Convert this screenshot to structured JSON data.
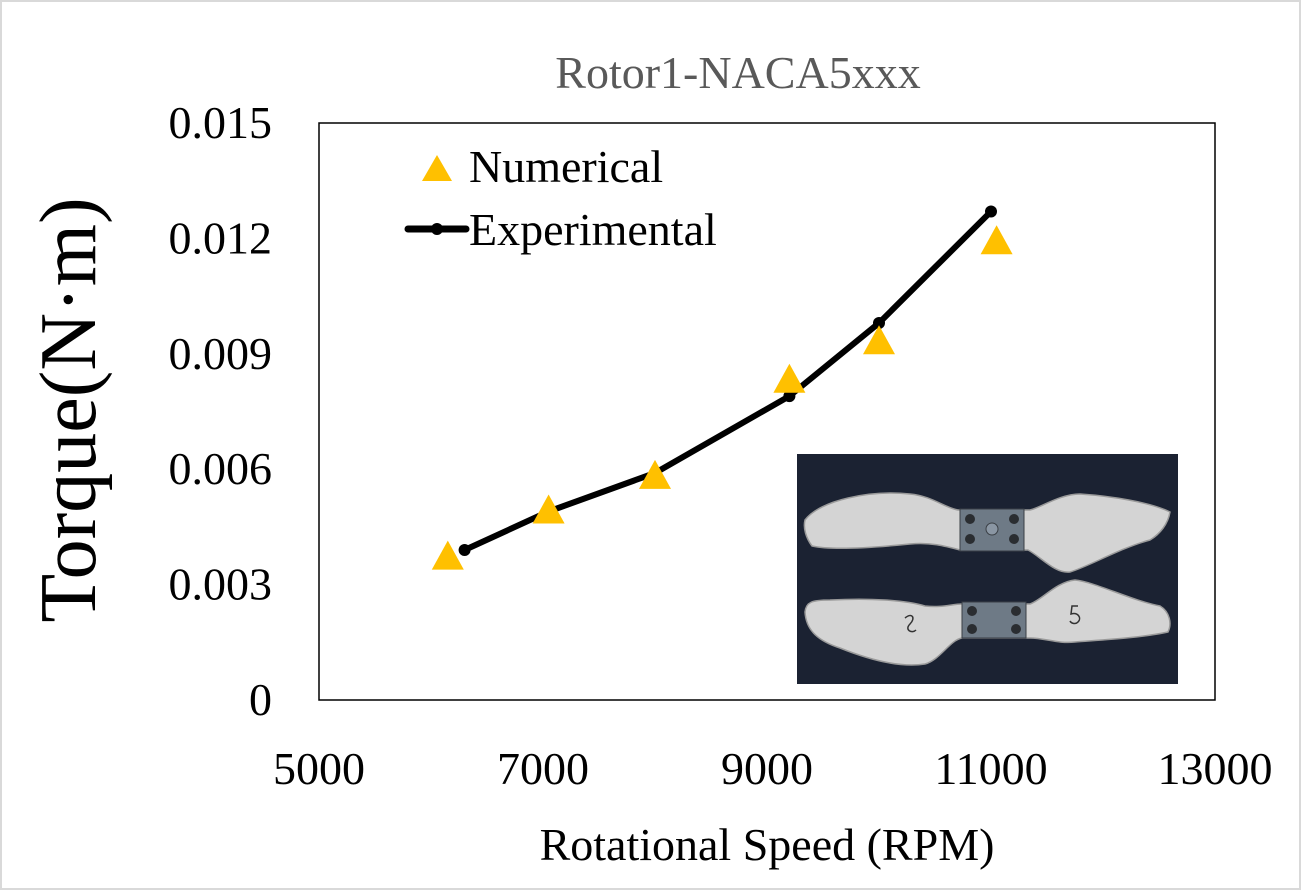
{
  "chart_data": {
    "type": "line",
    "title": "Rotor1-NACA5xxx",
    "xlabel": "Rotational Speed (RPM)",
    "ylabel": "Torque(N·m)",
    "xlim": [
      5000,
      13000
    ],
    "ylim": [
      0,
      0.015
    ],
    "x_ticks": [
      "5000",
      "7000",
      "9000",
      "11000",
      "13000"
    ],
    "y_ticks": [
      "0",
      "0.003",
      "0.006",
      "0.009",
      "0.012",
      "0.015"
    ],
    "x_tick_values": [
      5000,
      7000,
      9000,
      11000,
      13000
    ],
    "y_tick_values": [
      0,
      0.003,
      0.006,
      0.009,
      0.012,
      0.015
    ],
    "grid": false,
    "legend_position": "top-left",
    "series": [
      {
        "name": "Numerical",
        "marker": "triangle",
        "line": false,
        "color": "#FFC000",
        "x": [
          6150,
          7050,
          8000,
          9200,
          10000,
          11050
        ],
        "y": [
          0.0037,
          0.0049,
          0.0058,
          0.0083,
          0.0093,
          0.0119
        ]
      },
      {
        "name": "Experimental",
        "marker": "circle",
        "line": true,
        "color": "#000000",
        "x": [
          6300,
          7050,
          8000,
          9200,
          10000,
          11000
        ],
        "y": [
          0.0039,
          0.0049,
          0.0059,
          0.0079,
          0.0098,
          0.0127
        ]
      }
    ],
    "inset_image": "rotor-blades-photo"
  },
  "colors": {
    "title": "#595959",
    "axis_text": "#000000",
    "numerical": "#FFC000",
    "experimental": "#000000",
    "inset_background": "#1b2232",
    "blade": "#d6d6d6"
  }
}
